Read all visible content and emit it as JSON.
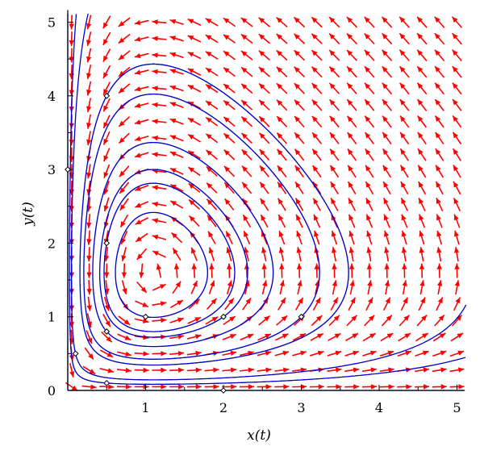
{
  "chart_data": {
    "type": "phase-portrait",
    "title": "",
    "xlabel": "x(t)",
    "ylabel": "y(t)",
    "xlim": [
      0,
      5.1
    ],
    "ylim": [
      0,
      5.1
    ],
    "x_ticks": [
      "1",
      "2",
      "3",
      "4",
      "5"
    ],
    "y_ticks": [
      "0",
      "1",
      "2",
      "3",
      "4",
      "5"
    ],
    "vector_field": {
      "equations": {
        "dx": "x*(1.6 - y)",
        "dy": "y*(x - 1.1)"
      },
      "grid_x": [
        0.05,
        5.0,
        23
      ],
      "grid_y": [
        0.05,
        5.0,
        23
      ],
      "arrow_color": "#ff0000"
    },
    "trajectories": {
      "color": "#0000cc",
      "initial_points": [
        [
          0.5,
          4.0
        ],
        [
          0.0,
          3.0
        ],
        [
          0.5,
          2.0
        ],
        [
          1.0,
          1.0
        ],
        [
          2.0,
          1.0
        ],
        [
          3.0,
          1.0
        ],
        [
          0.5,
          0.8
        ],
        [
          0.1,
          0.5
        ],
        [
          0.5,
          0.1
        ],
        [
          2.0,
          0.0
        ]
      ]
    },
    "grid": false,
    "legend": "none"
  }
}
